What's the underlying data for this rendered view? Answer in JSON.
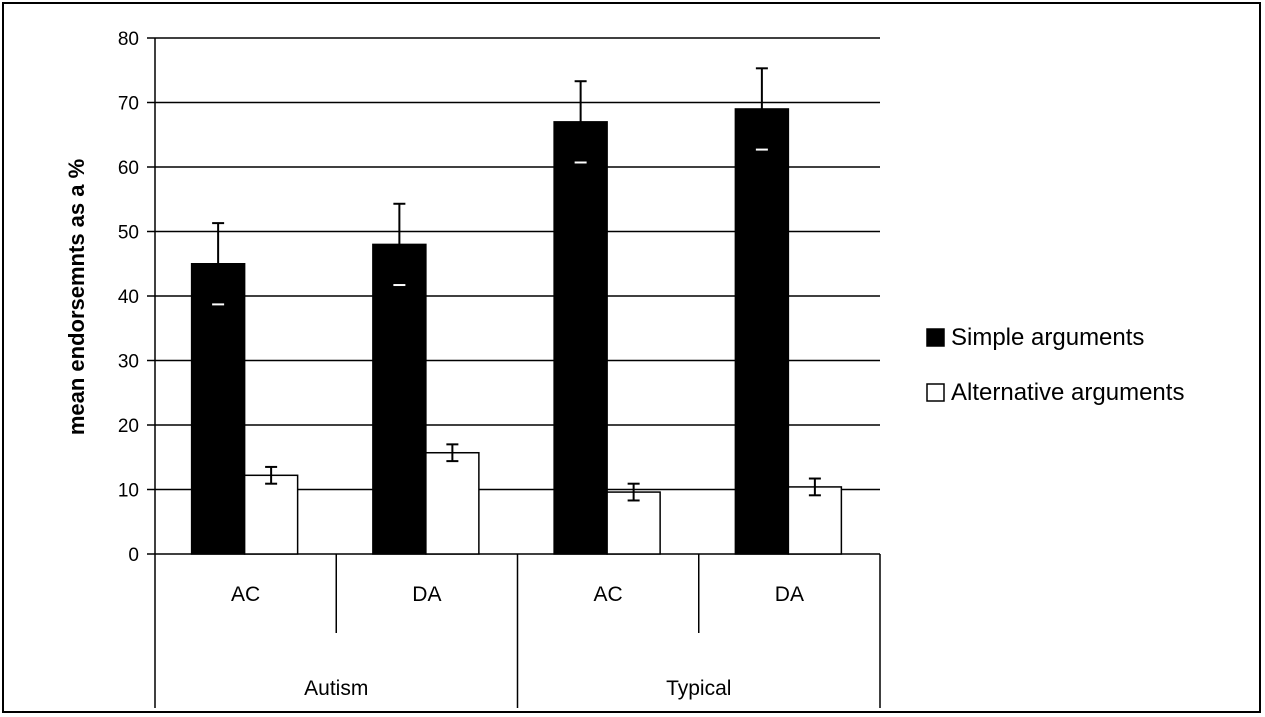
{
  "chart_data": {
    "type": "bar",
    "title": "",
    "ylabel": "mean endorsemnts as a %",
    "ylim": [
      0,
      80
    ],
    "yticks": [
      0,
      10,
      20,
      30,
      40,
      50,
      60,
      70,
      80
    ],
    "grid": true,
    "legend_position": "right",
    "categories": [
      "AC",
      "DA",
      "AC",
      "DA"
    ],
    "groups": [
      {
        "label": "Autism",
        "categories": [
          "AC",
          "DA"
        ]
      },
      {
        "label": "Typical",
        "categories": [
          "AC",
          "DA"
        ]
      }
    ],
    "series": [
      {
        "name": "Simple arguments",
        "color": "#000000",
        "values": [
          45,
          48,
          67,
          69
        ],
        "errors": [
          6.3,
          6.3,
          6.3,
          6.3
        ]
      },
      {
        "name": "Alternative arguments",
        "color": "#ffffff",
        "values": [
          12.2,
          15.7,
          9.6,
          10.4
        ],
        "errors": [
          1.3,
          1.3,
          1.3,
          1.3
        ]
      }
    ]
  }
}
